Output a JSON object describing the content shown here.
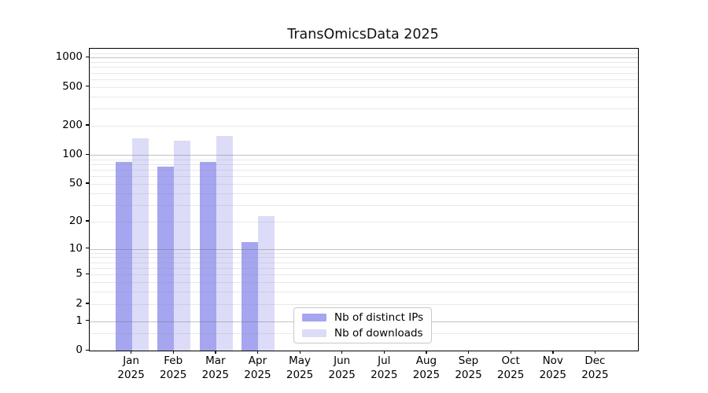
{
  "title": "TransOmicsData 2025",
  "chart_data": {
    "type": "bar",
    "title": "TransOmicsData 2025",
    "categories": [
      "Jan",
      "Feb",
      "Mar",
      "Apr",
      "May",
      "Jun",
      "Jul",
      "Aug",
      "Sep",
      "Oct",
      "Nov",
      "Dec"
    ],
    "x_year_label": "2025",
    "series": [
      {
        "name": "Nb of distinct IPs",
        "color": "#a5a5f0",
        "values": [
          84,
          76,
          84,
          12,
          0,
          0,
          0,
          0,
          0,
          0,
          0,
          0
        ]
      },
      {
        "name": "Nb of downloads",
        "color": "#dcdcf8",
        "values": [
          147,
          139,
          158,
          23,
          0,
          0,
          0,
          0,
          0,
          0,
          0,
          0
        ]
      }
    ],
    "yscale": "log1p",
    "ylim": [
      0,
      1235
    ],
    "yticks": [
      1000,
      500,
      200,
      100,
      50,
      20,
      10,
      5,
      2,
      1,
      0
    ],
    "minor_gridline_values": [
      0.5,
      2,
      3,
      4,
      5,
      6,
      7,
      8,
      9,
      20,
      30,
      40,
      50,
      60,
      70,
      80,
      90,
      200,
      300,
      400,
      500,
      600,
      700,
      800,
      900,
      1100
    ],
    "major_gridline_values": [
      1,
      10,
      100,
      1000
    ],
    "grid": "horizontal",
    "legend_position": "lower-center",
    "axis_color": "#000000",
    "major_grid_color": "#c6c6c6",
    "minor_grid_color": "#eaeaea"
  }
}
